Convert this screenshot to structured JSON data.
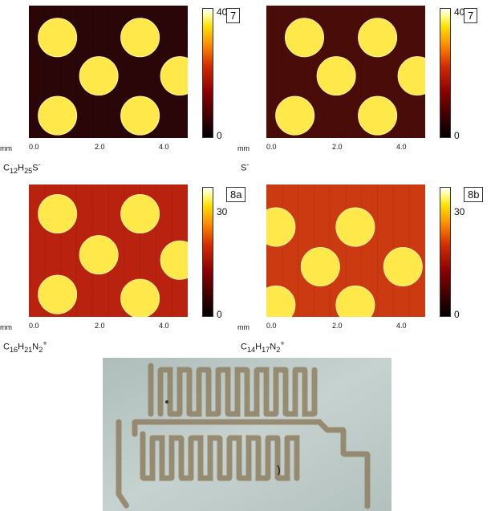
{
  "panels": [
    {
      "badge": "7",
      "cb_max": "40",
      "cb_min": "0",
      "unit": "mm",
      "ticks": [
        "0.0",
        "2.0",
        "4.0"
      ],
      "ion": {
        "base": "C",
        "parts": [
          [
            "12",
            ""
          ],
          [
            "H",
            ""
          ],
          [
            "25",
            ""
          ],
          [
            "S",
            "-"
          ]
        ]
      },
      "bg": "#2a0608",
      "dots": [
        [
          0.18,
          0.12
        ],
        [
          0.7,
          0.12
        ],
        [
          0.44,
          0.41
        ],
        [
          0.95,
          0.41
        ],
        [
          0.18,
          0.71
        ],
        [
          0.7,
          0.71
        ]
      ]
    },
    {
      "badge": "7",
      "cb_max": "40",
      "cb_min": "0",
      "unit": "mm",
      "ticks": [
        "0.0",
        "2.0",
        "4.0"
      ],
      "ion": {
        "base": "S",
        "parts": [
          [
            "",
            "-"
          ]
        ]
      },
      "bg": "#4a0c08",
      "dots": [
        [
          0.24,
          0.12
        ],
        [
          0.7,
          0.12
        ],
        [
          0.44,
          0.41
        ],
        [
          0.95,
          0.41
        ],
        [
          0.18,
          0.71
        ],
        [
          0.7,
          0.71
        ]
      ]
    },
    {
      "badge": "8a",
      "cb_max": "30",
      "cb_min": "0",
      "unit": "mm",
      "ticks": [
        "0.0",
        "2.0",
        "4.0"
      ],
      "ion": {
        "base": "C",
        "parts": [
          [
            "16",
            ""
          ],
          [
            "H",
            ""
          ],
          [
            "21",
            ""
          ],
          [
            "N",
            ""
          ],
          [
            "2",
            "+"
          ]
        ]
      },
      "bg": "#b8220e",
      "dots": [
        [
          0.18,
          0.1
        ],
        [
          0.7,
          0.1
        ],
        [
          0.44,
          0.41
        ],
        [
          0.95,
          0.45
        ],
        [
          0.18,
          0.71
        ],
        [
          0.7,
          0.74
        ]
      ]
    },
    {
      "badge": "8b",
      "cb_max": "30",
      "cb_min": "0",
      "unit": "mm",
      "ticks": [
        "0.0",
        "2.0",
        "4.0"
      ],
      "ion": {
        "base": "C",
        "parts": [
          [
            "14",
            ""
          ],
          [
            "H",
            ""
          ],
          [
            "17",
            ""
          ],
          [
            "N",
            ""
          ],
          [
            "2",
            "+"
          ]
        ]
      },
      "bg": "#cc3a12",
      "dots": [
        [
          0.06,
          0.2
        ],
        [
          0.56,
          0.2
        ],
        [
          0.34,
          0.5
        ],
        [
          0.86,
          0.5
        ],
        [
          0.06,
          0.79
        ],
        [
          0.56,
          0.79
        ]
      ]
    }
  ],
  "colors": {
    "spot": "#ffe94a",
    "spot_edge": "#fff6a0",
    "photo_bg": "#b7c5c2"
  }
}
